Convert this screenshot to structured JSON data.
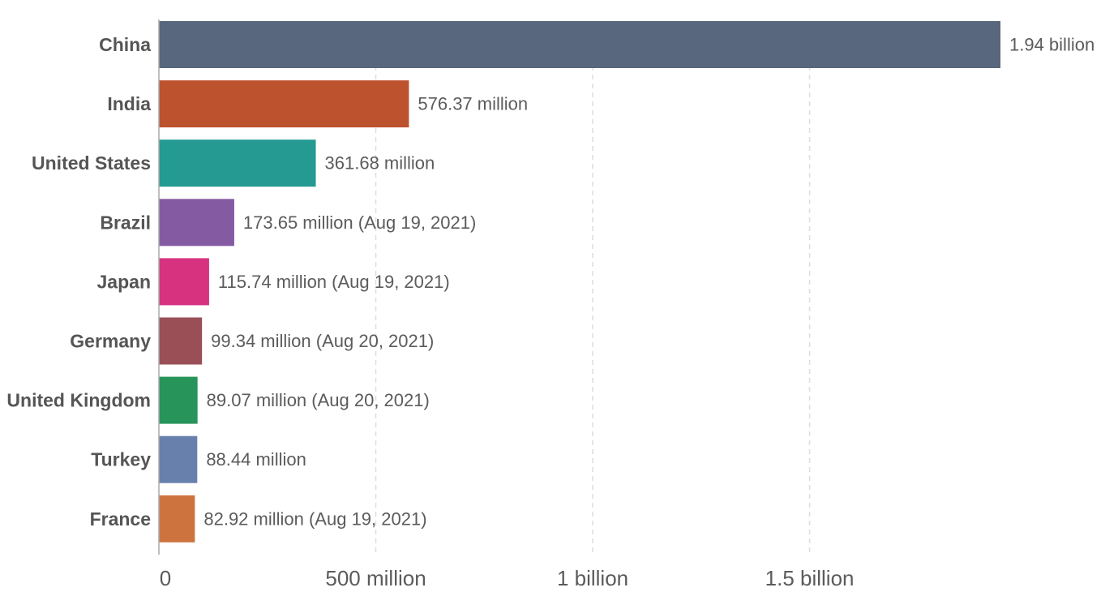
{
  "chart_data": {
    "type": "bar",
    "orientation": "horizontal",
    "categories": [
      "China",
      "India",
      "United States",
      "Brazil",
      "Japan",
      "Germany",
      "United Kingdom",
      "Turkey",
      "France"
    ],
    "values": [
      1940000000,
      576370000,
      361680000,
      173650000,
      115740000,
      99340000,
      89070000,
      88440000,
      82920000
    ],
    "value_labels": [
      "1.94 billion",
      "576.37 million",
      "361.68 million",
      "173.65 million (Aug 19, 2021)",
      "115.74 million (Aug 19, 2021)",
      "99.34 million (Aug 20, 2021)",
      "89.07 million (Aug 20, 2021)",
      "88.44 million",
      "82.92 million (Aug 19, 2021)"
    ],
    "colors": [
      "#58677d",
      "#bd522e",
      "#249a92",
      "#845ba3",
      "#d6327f",
      "#9a4e56",
      "#27945a",
      "#6880ac",
      "#cd743e"
    ],
    "x_ticks": [
      0,
      500000000,
      1000000000,
      1500000000
    ],
    "x_tick_labels": [
      "0",
      "500 million",
      "1 billion",
      "1.5 billion"
    ],
    "xlim": [
      0,
      1940000000
    ],
    "grid": true,
    "title": "",
    "xlabel": "",
    "ylabel": ""
  }
}
